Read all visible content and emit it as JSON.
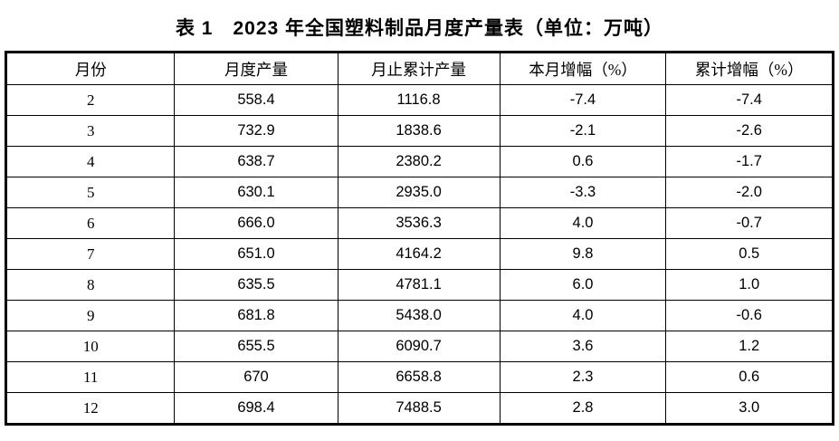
{
  "title": "表 1　2023 年全国塑料制品月度产量表（单位：万吨）",
  "colors": {
    "text": "#000000",
    "border": "#000000",
    "background": "#ffffff"
  },
  "chart_data": {
    "type": "table",
    "title": "表 1　2023 年全国塑料制品月度产量表（单位：万吨）",
    "columns": [
      "月份",
      "月度产量",
      "月止累计产量",
      "本月增幅（%）",
      "累计增幅（%）"
    ],
    "rows": [
      [
        "2",
        "558.4",
        "1116.8",
        "-7.4",
        "-7.4"
      ],
      [
        "3",
        "732.9",
        "1838.6",
        "-2.1",
        "-2.6"
      ],
      [
        "4",
        "638.7",
        "2380.2",
        "0.6",
        "-1.7"
      ],
      [
        "5",
        "630.1",
        "2935.0",
        "-3.3",
        "-2.0"
      ],
      [
        "6",
        "666.0",
        "3536.3",
        "4.0",
        "-0.7"
      ],
      [
        "7",
        "651.0",
        "4164.2",
        "9.8",
        "0.5"
      ],
      [
        "8",
        "635.5",
        "4781.1",
        "6.0",
        "1.0"
      ],
      [
        "9",
        "681.8",
        "5438.0",
        "4.0",
        "-0.6"
      ],
      [
        "10",
        "655.5",
        "6090.7",
        "3.6",
        "1.2"
      ],
      [
        "11",
        "670",
        "6658.8",
        "2.3",
        "0.6"
      ],
      [
        "12",
        "698.4",
        "7488.5",
        "2.8",
        "3.0"
      ]
    ]
  }
}
